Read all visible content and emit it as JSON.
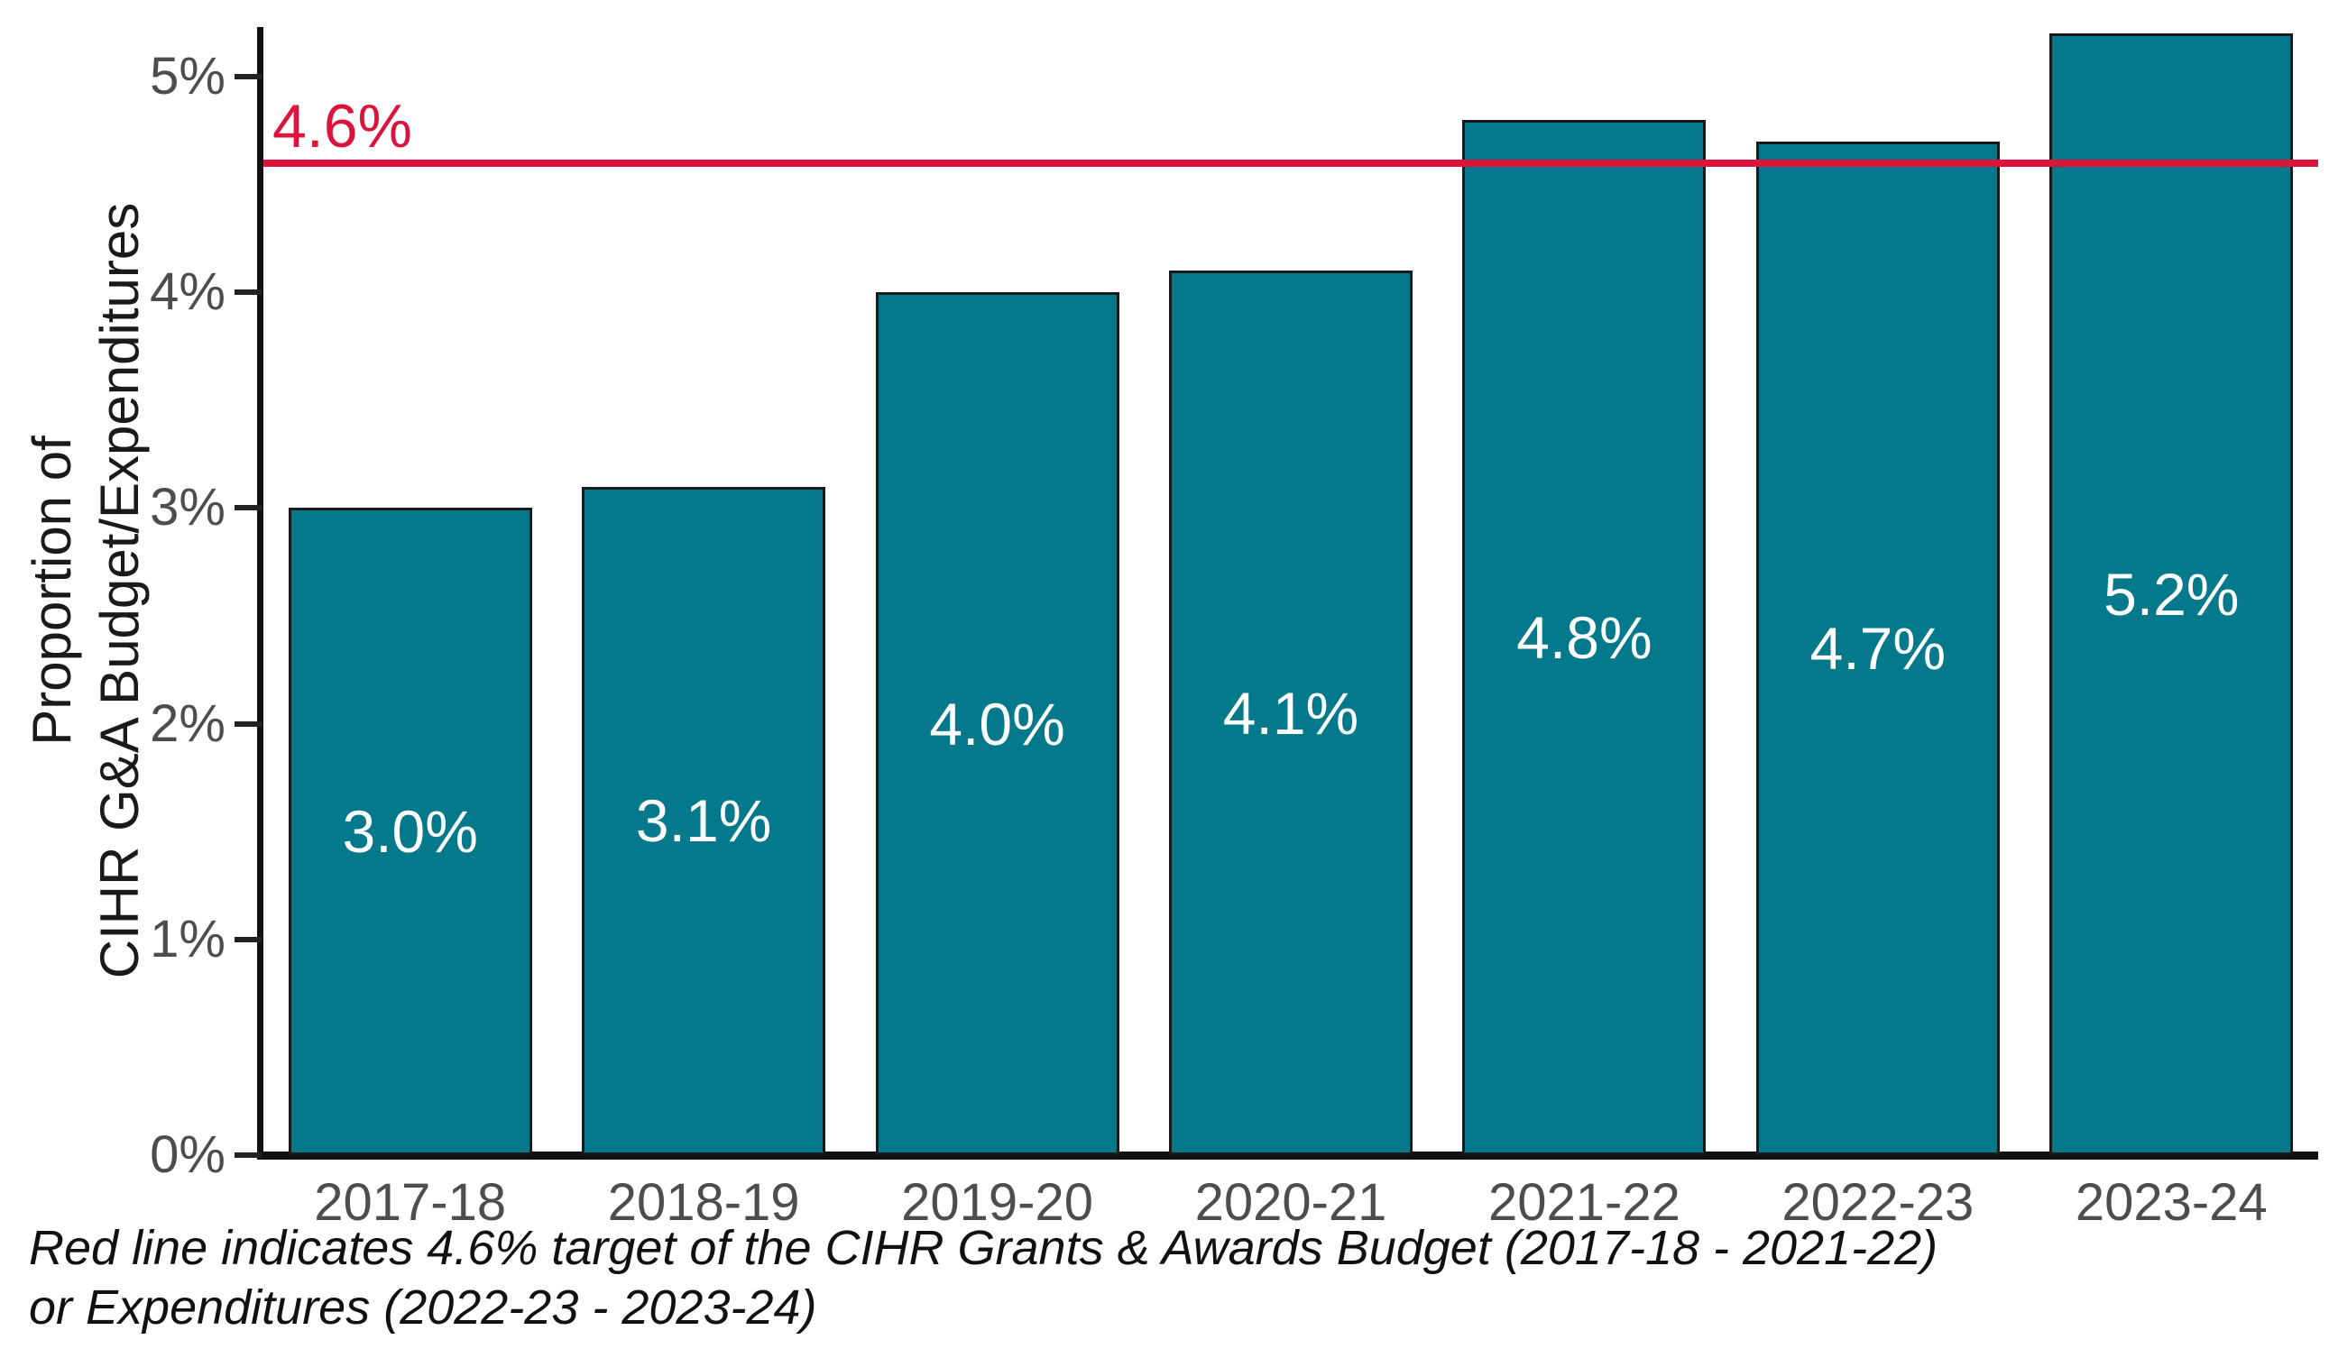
{
  "chart_data": {
    "type": "bar",
    "title": "",
    "categories": [
      "2017-18",
      "2018-19",
      "2019-20",
      "2020-21",
      "2021-22",
      "2022-23",
      "2023-24"
    ],
    "values": [
      3.0,
      3.1,
      4.0,
      4.1,
      4.8,
      4.7,
      5.2
    ],
    "bar_labels": [
      "3.0%",
      "3.1%",
      "4.0%",
      "4.1%",
      "4.8%",
      "4.7%",
      "5.2%"
    ],
    "xlabel": "",
    "ylabel": "Proportion of\nCIHR G&A Budget/Expenditures",
    "ylim": [
      0,
      5.23
    ],
    "yticks": [
      "0%",
      "1%",
      "2%",
      "3%",
      "4%",
      "5%"
    ],
    "grid": false,
    "legend": false,
    "bar_color": "#05798C",
    "bar_border_color": "#1a1a1a",
    "bar_label_color": "#ffffff",
    "axis_color": "#111111",
    "tick_label_color": "#4d4d4d",
    "target_line": {
      "value": 4.6,
      "label": "4.6%",
      "color": "#DC143C"
    },
    "caption": "Red line indicates 4.6% target of the CIHR Grants & Awards Budget (2017-18 - 2021-22)\nor Expenditures (2022-23 - 2023-24)"
  }
}
